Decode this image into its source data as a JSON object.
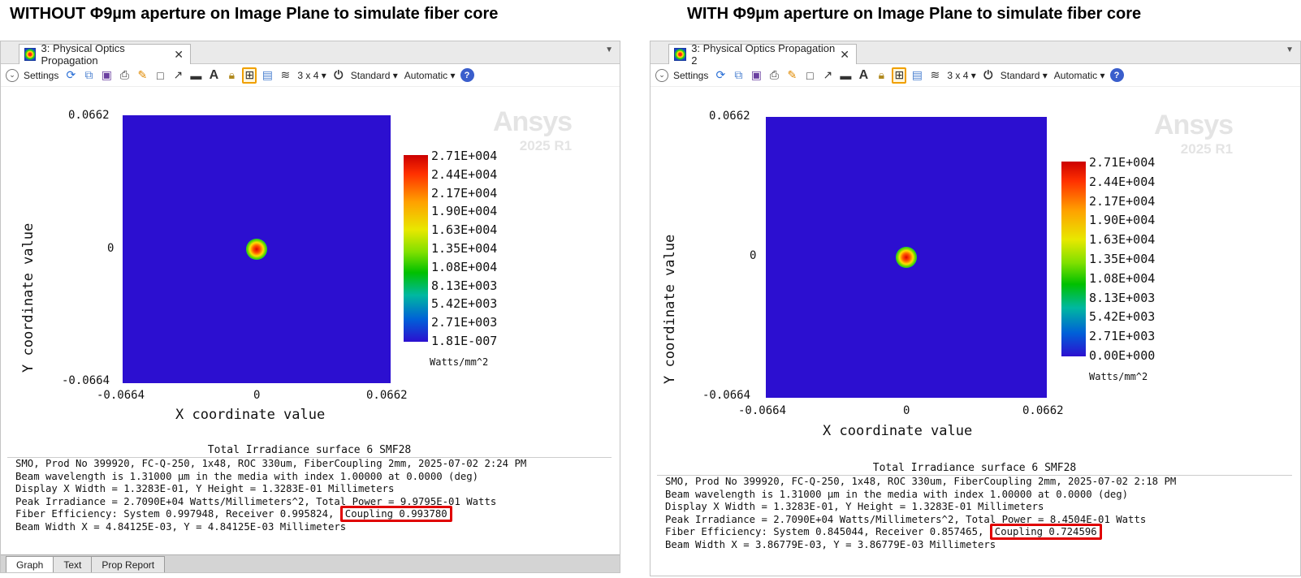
{
  "left": {
    "heading": "WITHOUT Φ9µm aperture on Image Plane to simulate fiber core",
    "tab_title": "3: Physical Optics Propagation",
    "toolbar": {
      "settings": "Settings",
      "layout": "3 x 4 ▾",
      "standard": "Standard ▾",
      "automatic": "Automatic ▾"
    },
    "plot": {
      "y_top": "0.0662",
      "y_mid": "0",
      "y_bottom": "-0.0664",
      "x_left": "-0.0664",
      "x_mid": "0",
      "x_right": "0.0662",
      "xlabel": "X coordinate value",
      "ylabel": "Y coordinate value",
      "colorbar": [
        "2.71E+004",
        "2.44E+004",
        "2.17E+004",
        "1.90E+004",
        "1.63E+004",
        "1.35E+004",
        "1.08E+004",
        "8.13E+003",
        "5.42E+003",
        "2.71E+003",
        "1.81E-007"
      ],
      "units": "Watts/mm^2"
    },
    "watermark": {
      "brand": "Ansys",
      "version": "2025 R1"
    },
    "info": {
      "title": "Total Irradiance surface 6 SMF28",
      "line1": "SMO, Prod No 399920, FC-Q-250, 1x48, ROC 330um, FiberCoupling 2mm, 2025-07-02 2:24 PM",
      "line2": "Beam wavelength is 1.31000 µm in the media with index 1.00000 at 0.0000 (deg)",
      "line3": "Display X Width = 1.3283E-01, Y Height = 1.3283E-01 Millimeters",
      "line4": "Peak Irradiance = 2.7090E+04 Watts/Millimeters^2, Total Power = 9.9795E-01 Watts",
      "line5a": "Fiber Efficiency: System 0.997948, Receiver 0.995824,",
      "line5b": "Coupling 0.993780",
      "line6": "Beam Width X = 4.84125E-03, Y = 4.84125E-03 Millimeters"
    },
    "bottom_tabs": [
      "Graph",
      "Text",
      "Prop Report"
    ]
  },
  "right": {
    "heading": "WITH Φ9µm aperture on Image Plane to simulate fiber core",
    "tab_title": "3: Physical Optics Propagation 2",
    "toolbar": {
      "settings": "Settings",
      "layout": "3 x 4 ▾",
      "standard": "Standard ▾",
      "automatic": "Automatic ▾"
    },
    "plot": {
      "y_top": "0.0662",
      "y_mid": "0",
      "y_bottom": "-0.0664",
      "x_left": "-0.0664",
      "x_mid": "0",
      "x_right": "0.0662",
      "xlabel": "X coordinate value",
      "ylabel": "Y coordinate value",
      "colorbar": [
        "2.71E+004",
        "2.44E+004",
        "2.17E+004",
        "1.90E+004",
        "1.63E+004",
        "1.35E+004",
        "1.08E+004",
        "8.13E+003",
        "5.42E+003",
        "2.71E+003",
        "0.00E+000"
      ],
      "units": "Watts/mm^2"
    },
    "watermark": {
      "brand": "Ansys",
      "version": "2025 R1"
    },
    "info": {
      "title": "Total Irradiance surface 6 SMF28",
      "line1": "SMO, Prod No 399920, FC-Q-250, 1x48, ROC 330um, FiberCoupling 2mm, 2025-07-02 2:18 PM",
      "line2": "Beam wavelength is 1.31000 µm in the media with index 1.00000 at 0.0000 (deg)",
      "line3": "Display X Width = 1.3283E-01, Y Height = 1.3283E-01 Millimeters",
      "line4": "Peak Irradiance = 2.7090E+04 Watts/Millimeters^2, Total Power = 8.4504E-01 Watts",
      "line5a": "Fiber Efficiency: System 0.845044, Receiver 0.857465,",
      "line5b": "Coupling 0.724596",
      "line6": "Beam Width X = 3.86779E-03, Y = 3.86779E-03 Millimeters"
    }
  },
  "colors": {
    "map_background": "#2c0fd0",
    "highlight": "#e00000"
  }
}
